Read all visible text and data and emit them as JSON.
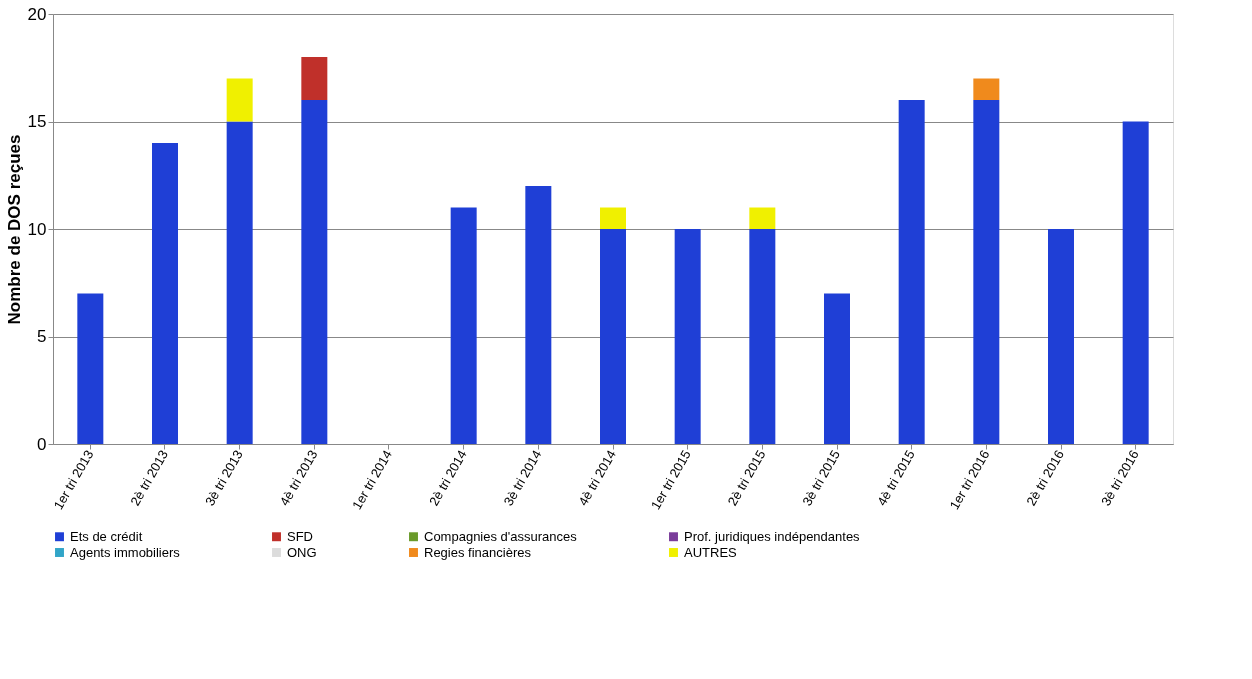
{
  "chart_data": {
    "type": "bar",
    "stacked": true,
    "ylabel": "Nombre de DOS reçues",
    "categories": [
      "1er tri 2013",
      "2è tri 2013",
      "3è tri 2013",
      "4è tri 2013",
      "1er tri 2014",
      "2è tri 2014",
      "3è tri 2014",
      "4è tri 2014",
      "1er tri 2015",
      "2è tri 2015",
      "3è tri 2015",
      "4è tri 2015",
      "1er tri 2016",
      "2è tri 2016",
      "3è tri 2016"
    ],
    "series": [
      {
        "name": "Ets de crédit",
        "color": "#1f3fd6",
        "values": [
          7,
          14,
          15,
          16,
          null,
          11,
          12,
          10,
          10,
          10,
          7,
          16,
          16,
          10,
          15
        ]
      },
      {
        "name": "SFD",
        "color": "#c0302a",
        "values": [
          null,
          null,
          null,
          2,
          null,
          null,
          null,
          null,
          null,
          null,
          null,
          null,
          null,
          null,
          null
        ]
      },
      {
        "name": "Compagnies d'assurances",
        "color": "#6a9a2a",
        "values": [
          null,
          null,
          null,
          null,
          null,
          null,
          null,
          null,
          null,
          null,
          null,
          null,
          null,
          null,
          null
        ]
      },
      {
        "name": "Prof. juridiques indépendantes",
        "color": "#7a3c9a",
        "values": [
          null,
          null,
          null,
          null,
          null,
          null,
          null,
          null,
          null,
          null,
          null,
          null,
          null,
          null,
          null
        ]
      },
      {
        "name": "Agents immobiliers",
        "color": "#31a5c8",
        "values": [
          null,
          null,
          null,
          null,
          null,
          null,
          null,
          null,
          null,
          null,
          null,
          null,
          null,
          null,
          null
        ]
      },
      {
        "name": "ONG",
        "color": "#dcdcdc",
        "values": [
          null,
          null,
          null,
          null,
          null,
          null,
          null,
          null,
          null,
          null,
          null,
          null,
          null,
          null,
          null
        ]
      },
      {
        "name": "Regies financières",
        "color": "#f08a1c",
        "values": [
          null,
          null,
          null,
          null,
          null,
          null,
          null,
          null,
          null,
          null,
          null,
          null,
          1,
          null,
          null
        ]
      },
      {
        "name": "AUTRES",
        "color": "#f0f000",
        "values": [
          null,
          null,
          2,
          null,
          null,
          null,
          null,
          1,
          null,
          1,
          null,
          null,
          null,
          null,
          null
        ]
      }
    ],
    "ylim": [
      0,
      20
    ],
    "yticks": [
      0,
      5,
      10,
      15,
      20
    ],
    "grid": "y",
    "legend": "bottom"
  }
}
